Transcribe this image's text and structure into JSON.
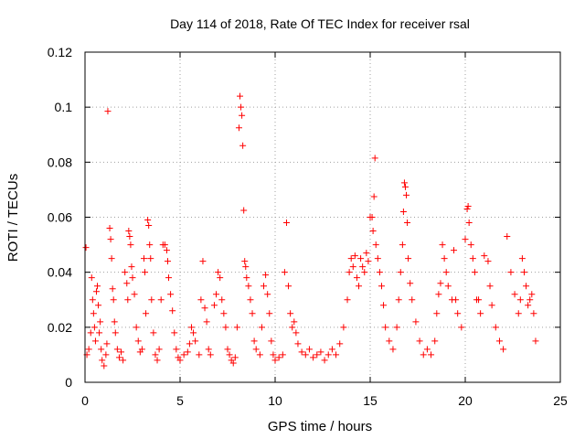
{
  "chart_data": {
    "type": "scatter",
    "title": "Day 114 of 2018, Rate Of TEC Index for receiver rsal",
    "xlabel": "GPS time / hours",
    "ylabel": "ROTI / TECUs",
    "xlim": [
      0,
      25
    ],
    "ylim": [
      0,
      0.12
    ],
    "x_ticks": [
      0,
      5,
      10,
      15,
      20,
      25
    ],
    "x_tick_labels": [
      "0",
      "5",
      "10",
      "15",
      "20",
      "25"
    ],
    "y_ticks": [
      0,
      0.02,
      0.04,
      0.06,
      0.08,
      0.1,
      0.12
    ],
    "y_tick_labels": [
      "0",
      "0.02",
      "0.04",
      "0.06",
      "0.08",
      "0.1",
      "0.12"
    ],
    "grid": true,
    "marker": "+",
    "marker_color": "#ff0000",
    "series": [
      {
        "name": "ROTI",
        "points": [
          [
            0.05,
            0.049
          ],
          [
            0.1,
            0.01
          ],
          [
            0.2,
            0.012
          ],
          [
            0.3,
            0.018
          ],
          [
            0.35,
            0.038
          ],
          [
            0.4,
            0.03
          ],
          [
            0.45,
            0.025
          ],
          [
            0.5,
            0.02
          ],
          [
            0.55,
            0.015
          ],
          [
            0.6,
            0.033
          ],
          [
            0.65,
            0.035
          ],
          [
            0.7,
            0.028
          ],
          [
            0.75,
            0.018
          ],
          [
            0.8,
            0.022
          ],
          [
            0.85,
            0.012
          ],
          [
            0.9,
            0.008
          ],
          [
            1.0,
            0.006
          ],
          [
            1.1,
            0.01
          ],
          [
            1.15,
            0.014
          ],
          [
            1.2,
            0.0985
          ],
          [
            1.3,
            0.056
          ],
          [
            1.35,
            0.052
          ],
          [
            1.4,
            0.045
          ],
          [
            1.45,
            0.034
          ],
          [
            1.5,
            0.03
          ],
          [
            1.55,
            0.022
          ],
          [
            1.6,
            0.018
          ],
          [
            1.7,
            0.012
          ],
          [
            1.8,
            0.009
          ],
          [
            1.9,
            0.011
          ],
          [
            2.0,
            0.008
          ],
          [
            2.1,
            0.04
          ],
          [
            2.2,
            0.036
          ],
          [
            2.25,
            0.03
          ],
          [
            2.3,
            0.055
          ],
          [
            2.35,
            0.053
          ],
          [
            2.4,
            0.05
          ],
          [
            2.45,
            0.042
          ],
          [
            2.5,
            0.038
          ],
          [
            2.6,
            0.032
          ],
          [
            2.7,
            0.02
          ],
          [
            2.8,
            0.015
          ],
          [
            2.9,
            0.011
          ],
          [
            3.0,
            0.012
          ],
          [
            3.1,
            0.045
          ],
          [
            3.15,
            0.04
          ],
          [
            3.2,
            0.025
          ],
          [
            3.3,
            0.059
          ],
          [
            3.35,
            0.057
          ],
          [
            3.4,
            0.05
          ],
          [
            3.45,
            0.045
          ],
          [
            3.5,
            0.03
          ],
          [
            3.6,
            0.018
          ],
          [
            3.7,
            0.01
          ],
          [
            3.8,
            0.008
          ],
          [
            3.9,
            0.012
          ],
          [
            4.0,
            0.03
          ],
          [
            4.1,
            0.05
          ],
          [
            4.2,
            0.05
          ],
          [
            4.3,
            0.048
          ],
          [
            4.35,
            0.044
          ],
          [
            4.4,
            0.038
          ],
          [
            4.5,
            0.032
          ],
          [
            4.6,
            0.026
          ],
          [
            4.7,
            0.018
          ],
          [
            4.8,
            0.012
          ],
          [
            4.9,
            0.009
          ],
          [
            5.0,
            0.008
          ],
          [
            5.2,
            0.01
          ],
          [
            5.4,
            0.011
          ],
          [
            5.5,
            0.014
          ],
          [
            5.6,
            0.02
          ],
          [
            5.7,
            0.018
          ],
          [
            5.8,
            0.015
          ],
          [
            6.0,
            0.01
          ],
          [
            6.1,
            0.03
          ],
          [
            6.2,
            0.044
          ],
          [
            6.3,
            0.027
          ],
          [
            6.4,
            0.022
          ],
          [
            6.5,
            0.012
          ],
          [
            6.6,
            0.01
          ],
          [
            6.8,
            0.028
          ],
          [
            6.9,
            0.032
          ],
          [
            7.0,
            0.04
          ],
          [
            7.1,
            0.038
          ],
          [
            7.2,
            0.03
          ],
          [
            7.3,
            0.025
          ],
          [
            7.4,
            0.02
          ],
          [
            7.5,
            0.012
          ],
          [
            7.6,
            0.01
          ],
          [
            7.7,
            0.008
          ],
          [
            7.8,
            0.007
          ],
          [
            7.9,
            0.009
          ],
          [
            8.0,
            0.02
          ],
          [
            8.1,
            0.0925
          ],
          [
            8.15,
            0.104
          ],
          [
            8.2,
            0.1
          ],
          [
            8.25,
            0.097
          ],
          [
            8.3,
            0.086
          ],
          [
            8.35,
            0.0625
          ],
          [
            8.4,
            0.044
          ],
          [
            8.45,
            0.042
          ],
          [
            8.5,
            0.038
          ],
          [
            8.6,
            0.035
          ],
          [
            8.7,
            0.03
          ],
          [
            8.8,
            0.025
          ],
          [
            8.9,
            0.015
          ],
          [
            9.0,
            0.012
          ],
          [
            9.2,
            0.01
          ],
          [
            9.3,
            0.02
          ],
          [
            9.4,
            0.035
          ],
          [
            9.5,
            0.039
          ],
          [
            9.6,
            0.032
          ],
          [
            9.7,
            0.025
          ],
          [
            9.8,
            0.015
          ],
          [
            9.9,
            0.01
          ],
          [
            10.0,
            0.008
          ],
          [
            10.2,
            0.009
          ],
          [
            10.4,
            0.01
          ],
          [
            10.5,
            0.04
          ],
          [
            10.6,
            0.058
          ],
          [
            10.7,
            0.035
          ],
          [
            10.8,
            0.025
          ],
          [
            10.9,
            0.02
          ],
          [
            11.0,
            0.022
          ],
          [
            11.1,
            0.018
          ],
          [
            11.2,
            0.014
          ],
          [
            11.4,
            0.011
          ],
          [
            11.6,
            0.01
          ],
          [
            11.8,
            0.012
          ],
          [
            12.0,
            0.009
          ],
          [
            12.2,
            0.01
          ],
          [
            12.4,
            0.011
          ],
          [
            12.6,
            0.008
          ],
          [
            12.8,
            0.01
          ],
          [
            13.0,
            0.012
          ],
          [
            13.2,
            0.01
          ],
          [
            13.4,
            0.014
          ],
          [
            13.6,
            0.02
          ],
          [
            13.8,
            0.03
          ],
          [
            13.9,
            0.04
          ],
          [
            14.0,
            0.045
          ],
          [
            14.1,
            0.042
          ],
          [
            14.2,
            0.046
          ],
          [
            14.3,
            0.038
          ],
          [
            14.4,
            0.035
          ],
          [
            14.5,
            0.045
          ],
          [
            14.6,
            0.042
          ],
          [
            14.7,
            0.04
          ],
          [
            14.8,
            0.047
          ],
          [
            14.9,
            0.044
          ],
          [
            15.0,
            0.06
          ],
          [
            15.1,
            0.06
          ],
          [
            15.15,
            0.055
          ],
          [
            15.2,
            0.0675
          ],
          [
            15.25,
            0.0815
          ],
          [
            15.3,
            0.05
          ],
          [
            15.4,
            0.045
          ],
          [
            15.5,
            0.04
          ],
          [
            15.6,
            0.035
          ],
          [
            15.7,
            0.028
          ],
          [
            15.8,
            0.02
          ],
          [
            16.0,
            0.015
          ],
          [
            16.2,
            0.012
          ],
          [
            16.4,
            0.02
          ],
          [
            16.5,
            0.03
          ],
          [
            16.6,
            0.04
          ],
          [
            16.7,
            0.05
          ],
          [
            16.75,
            0.062
          ],
          [
            16.8,
            0.0725
          ],
          [
            16.85,
            0.071
          ],
          [
            16.9,
            0.068
          ],
          [
            16.95,
            0.058
          ],
          [
            17.0,
            0.045
          ],
          [
            17.1,
            0.036
          ],
          [
            17.2,
            0.03
          ],
          [
            17.4,
            0.022
          ],
          [
            17.6,
            0.015
          ],
          [
            17.8,
            0.01
          ],
          [
            18.0,
            0.012
          ],
          [
            18.2,
            0.01
          ],
          [
            18.4,
            0.015
          ],
          [
            18.5,
            0.025
          ],
          [
            18.6,
            0.032
          ],
          [
            18.7,
            0.036
          ],
          [
            18.8,
            0.05
          ],
          [
            18.9,
            0.045
          ],
          [
            19.0,
            0.04
          ],
          [
            19.1,
            0.035
          ],
          [
            19.3,
            0.03
          ],
          [
            19.4,
            0.048
          ],
          [
            19.5,
            0.03
          ],
          [
            19.6,
            0.025
          ],
          [
            19.8,
            0.02
          ],
          [
            20.0,
            0.052
          ],
          [
            20.1,
            0.063
          ],
          [
            20.15,
            0.064
          ],
          [
            20.2,
            0.058
          ],
          [
            20.3,
            0.05
          ],
          [
            20.4,
            0.045
          ],
          [
            20.5,
            0.04
          ],
          [
            20.6,
            0.03
          ],
          [
            20.7,
            0.03
          ],
          [
            20.8,
            0.025
          ],
          [
            21.0,
            0.046
          ],
          [
            21.2,
            0.044
          ],
          [
            21.3,
            0.035
          ],
          [
            21.4,
            0.028
          ],
          [
            21.6,
            0.02
          ],
          [
            21.8,
            0.015
          ],
          [
            22.0,
            0.012
          ],
          [
            22.2,
            0.053
          ],
          [
            22.4,
            0.04
          ],
          [
            22.6,
            0.032
          ],
          [
            22.8,
            0.025
          ],
          [
            22.9,
            0.03
          ],
          [
            23.0,
            0.045
          ],
          [
            23.1,
            0.04
          ],
          [
            23.2,
            0.035
          ],
          [
            23.3,
            0.028
          ],
          [
            23.4,
            0.03
          ],
          [
            23.5,
            0.032
          ],
          [
            23.6,
            0.025
          ],
          [
            23.7,
            0.015
          ]
        ]
      }
    ]
  }
}
